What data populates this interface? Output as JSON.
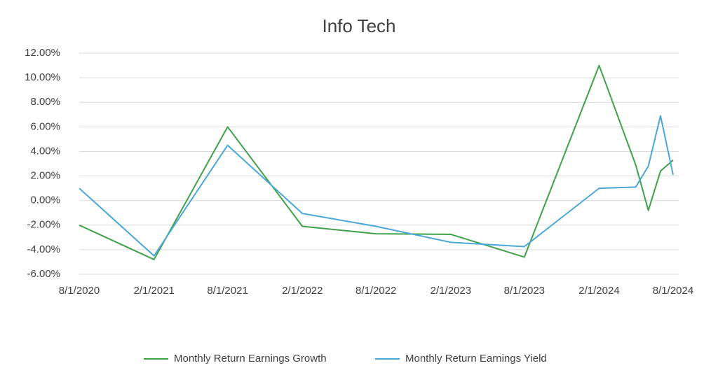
{
  "chart_data": {
    "type": "line",
    "title": "Info Tech",
    "x": [
      "2020-08-01",
      "2021-02-01",
      "2021-08-01",
      "2022-02-01",
      "2022-08-01",
      "2023-02-01",
      "2023-08-01",
      "2024-02-01",
      "2024-05-01",
      "2024-06-01",
      "2024-07-01",
      "2024-08-01"
    ],
    "series": [
      {
        "name": "Monthly Return Earnings Growth",
        "color": "#3fa14a",
        "values": [
          -2.0,
          -4.8,
          6.0,
          -2.1,
          -2.7,
          -2.75,
          -4.6,
          11.0,
          2.9,
          -0.8,
          2.4,
          3.3
        ]
      },
      {
        "name": "Monthly Return Earnings Yield",
        "color": "#4aa8d8",
        "values": [
          1.0,
          -4.5,
          4.5,
          -1.05,
          -2.1,
          -3.4,
          -3.75,
          1.0,
          1.1,
          2.8,
          6.9,
          2.1
        ]
      }
    ],
    "xlim": [
      "2020-08-01",
      "2024-08-01"
    ],
    "xticks": [
      {
        "value": "2020-08-01",
        "label": "8/1/2020"
      },
      {
        "value": "2021-02-01",
        "label": "2/1/2021"
      },
      {
        "value": "2021-08-01",
        "label": "8/1/2021"
      },
      {
        "value": "2022-02-01",
        "label": "2/1/2022"
      },
      {
        "value": "2022-08-01",
        "label": "8/1/2022"
      },
      {
        "value": "2023-02-01",
        "label": "2/1/2023"
      },
      {
        "value": "2023-08-01",
        "label": "8/1/2023"
      },
      {
        "value": "2024-02-01",
        "label": "2/1/2024"
      },
      {
        "value": "2024-08-01",
        "label": "8/1/2024"
      }
    ],
    "ylim": [
      -6,
      12
    ],
    "yticks": [
      {
        "value": -6,
        "label": "-6.00%"
      },
      {
        "value": -4,
        "label": "-4.00%"
      },
      {
        "value": -2,
        "label": "-2.00%"
      },
      {
        "value": 0,
        "label": "0.00%"
      },
      {
        "value": 2,
        "label": "2.00%"
      },
      {
        "value": 4,
        "label": "4.00%"
      },
      {
        "value": 6,
        "label": "6.00%"
      },
      {
        "value": 8,
        "label": "8.00%"
      },
      {
        "value": 10,
        "label": "10.00%"
      },
      {
        "value": 12,
        "label": "12.00%"
      }
    ],
    "grid": true,
    "legend": "bottom"
  }
}
